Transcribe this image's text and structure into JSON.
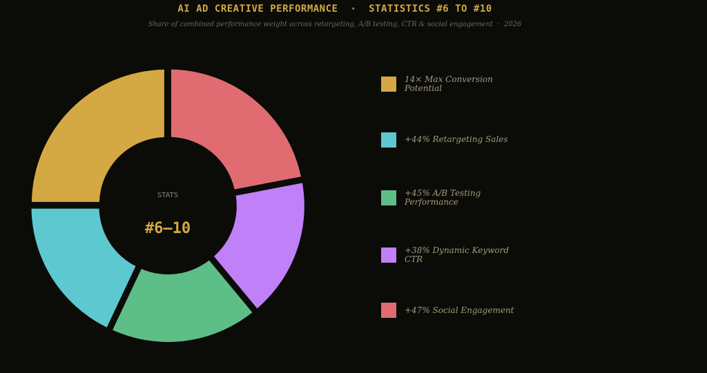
{
  "chart_data": {
    "type": "pie",
    "title": "AI AD CREATIVE PERFORMANCE  ·  STATISTICS #6 TO #10",
    "subtitle": "Share of combined performance weight across retargeting, A/B testing, CTR & social engagement  ·  2026",
    "center_label": "STATS",
    "center_value": "#6–10",
    "legend_position": "right",
    "slices": [
      {
        "label": "14× Max Conversion Potential",
        "value": 25,
        "color": "#d4a843"
      },
      {
        "label": "+44% Retargeting Sales",
        "value": 18,
        "color": "#5ec8d0"
      },
      {
        "label": "+45% A/B Testing Performance",
        "value": 18,
        "color": "#5ebe88"
      },
      {
        "label": "+38% Dynamic Keyword CTR",
        "value": 17,
        "color": "#c080f8"
      },
      {
        "label": "+47% Social Engagement",
        "value": 22,
        "color": "#e06c72"
      }
    ]
  }
}
